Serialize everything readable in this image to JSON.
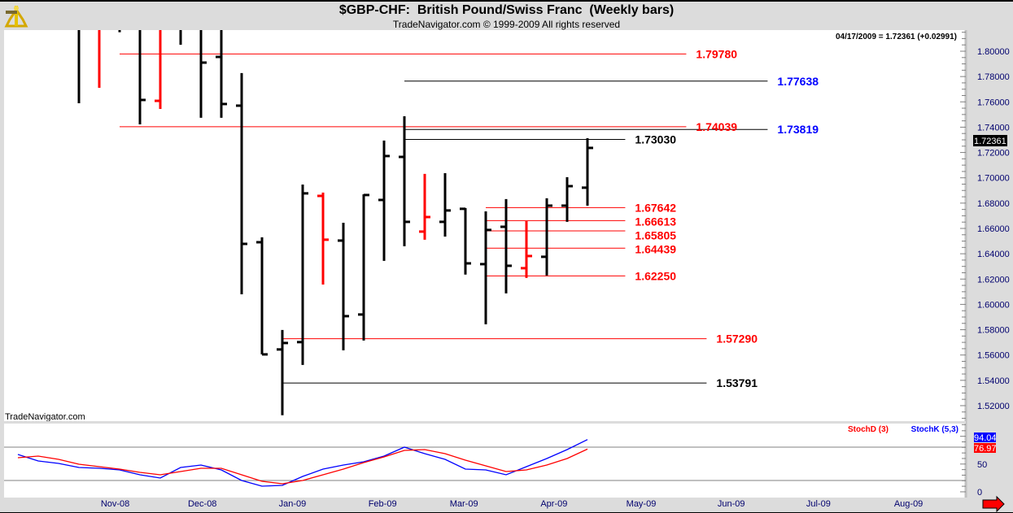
{
  "header": {
    "title": "$GBP-CHF:  British Pound/Swiss Franc  (Weekly bars)",
    "subtitle": "TradeNavigator.com © 1999-2009 All rights reserved",
    "readout": "04/17/2009 = 1.72361 (+0.02991)",
    "watermark": "TradeNavigator.com"
  },
  "colors": {
    "up_bar": "#000000",
    "highlight_bar": "#ff0000",
    "stoch_k": "#0000ff",
    "stoch_d": "#ff0000",
    "label_red": "#ff0000",
    "label_blue": "#0000ff",
    "label_black": "#000000"
  },
  "chart_data": [
    {
      "type": "ohlc",
      "title": "$GBP-CHF:  British Pound/Swiss Franc  (Weekly bars)",
      "ylim": [
        1.505,
        1.8167
      ],
      "y_ticks": [
        "1.80000",
        "1.78000",
        "1.76000",
        "1.74000",
        "1.72000",
        "1.70000",
        "1.68000",
        "1.66000",
        "1.64000",
        "1.62000",
        "1.60000",
        "1.58000",
        "1.56000",
        "1.54000",
        "1.52000"
      ],
      "last_price_label": "1.72361",
      "x_start": "2008-10-03",
      "x_ticks": [
        {
          "label": "Nov-08",
          "date": "2008-11-01"
        },
        {
          "label": "Dec-08",
          "date": "2008-12-01"
        },
        {
          "label": "Jan-09",
          "date": "2009-01-01"
        },
        {
          "label": "Feb-09",
          "date": "2009-02-01"
        },
        {
          "label": "Mar-09",
          "date": "2009-03-01"
        },
        {
          "label": "Apr-09",
          "date": "2009-04-01"
        },
        {
          "label": "May-09",
          "date": "2009-05-01"
        },
        {
          "label": "Jun-09",
          "date": "2009-06-01"
        },
        {
          "label": "Jul-09",
          "date": "2009-07-01"
        },
        {
          "label": "Aug-09",
          "date": "2009-08-01"
        }
      ],
      "bars": [
        {
          "date": "2008-10-24",
          "o": null,
          "h": null,
          "l": 1.7589,
          "c": null,
          "red": false
        },
        {
          "date": "2008-10-31",
          "o": null,
          "h": null,
          "l": 1.7711,
          "c": null,
          "red": true
        },
        {
          "date": "2008-11-07",
          "o": null,
          "h": null,
          "l": 1.815,
          "c": null,
          "red": false
        },
        {
          "date": "2008-11-14",
          "o": null,
          "h": null,
          "l": 1.7422,
          "c": 1.7615,
          "red": false
        },
        {
          "date": "2008-11-21",
          "o": 1.7608,
          "h": null,
          "l": 1.7544,
          "c": null,
          "red": true
        },
        {
          "date": "2008-11-28",
          "o": null,
          "h": null,
          "l": 1.8051,
          "c": null,
          "red": false
        },
        {
          "date": "2008-12-05",
          "o": null,
          "h": null,
          "l": 1.7474,
          "c": 1.791,
          "red": false
        },
        {
          "date": "2008-12-12",
          "o": 1.7955,
          "h": null,
          "l": 1.7474,
          "c": 1.7583,
          "red": false
        },
        {
          "date": "2008-12-19",
          "o": 1.757,
          "h": 1.7827,
          "l": 1.608,
          "c": 1.6478,
          "red": false
        },
        {
          "date": "2008-12-26",
          "o": 1.6491,
          "h": 1.653,
          "l": 1.5605,
          "c": 1.5605,
          "red": false
        },
        {
          "date": "2009-01-02",
          "o": 1.5644,
          "h": 1.5798,
          "l": 1.5124,
          "c": 1.5695,
          "red": false
        },
        {
          "date": "2009-01-09",
          "o": 1.5702,
          "h": 1.6947,
          "l": 1.5522,
          "c": 1.6877,
          "red": false
        },
        {
          "date": "2009-01-16",
          "o": 1.6857,
          "h": 1.6883,
          "l": 1.6157,
          "c": 1.6511,
          "red": true
        },
        {
          "date": "2009-01-23",
          "o": 1.6504,
          "h": 1.6645,
          "l": 1.5637,
          "c": 1.5907,
          "red": false
        },
        {
          "date": "2009-01-30",
          "o": 1.592,
          "h": 1.687,
          "l": 1.5714,
          "c": 1.6864,
          "red": false
        },
        {
          "date": "2009-02-06",
          "o": 1.6825,
          "h": 1.7294,
          "l": 1.6344,
          "c": 1.7172,
          "red": false
        },
        {
          "date": "2009-02-13",
          "o": 1.7165,
          "h": 1.7486,
          "l": 1.6459,
          "c": 1.6652,
          "red": false
        },
        {
          "date": "2009-02-20",
          "o": 1.6575,
          "h": 1.7031,
          "l": 1.6511,
          "c": 1.669,
          "red": true
        },
        {
          "date": "2009-02-27",
          "o": 1.6652,
          "h": 1.7037,
          "l": 1.6536,
          "c": 1.6742,
          "red": false
        },
        {
          "date": "2009-03-06",
          "o": 1.6755,
          "h": 1.6761,
          "l": 1.6235,
          "c": 1.6324,
          "red": false
        },
        {
          "date": "2009-03-13",
          "o": 1.6318,
          "h": 1.6735,
          "l": 1.5843,
          "c": 1.6588,
          "red": false
        },
        {
          "date": "2009-03-20",
          "o": 1.6613,
          "h": 1.6832,
          "l": 1.6087,
          "c": 1.6305,
          "red": false
        },
        {
          "date": "2009-03-27",
          "o": 1.6286,
          "h": 1.6658,
          "l": 1.6209,
          "c": 1.6382,
          "red": true
        },
        {
          "date": "2009-04-03",
          "o": 1.6376,
          "h": 1.6838,
          "l": 1.6228,
          "c": 1.678,
          "red": false
        },
        {
          "date": "2009-04-10",
          "o": 1.678,
          "h": 1.7005,
          "l": 1.6652,
          "c": 1.6934,
          "red": false
        },
        {
          "date": "2009-04-17",
          "o": 1.6922,
          "h": 1.7313,
          "l": 1.678,
          "c": 1.72361,
          "red": false
        }
      ],
      "levels": [
        {
          "label": "1.79780",
          "price": 1.7978,
          "from": "2008-11-07",
          "to": "2009-05-21",
          "line": "#ff0000",
          "text": "#ff0000"
        },
        {
          "label": "1.77638",
          "price": 1.77638,
          "from": "2009-02-13",
          "to": "2009-06-18",
          "line": "#000000",
          "text": "#0000ff"
        },
        {
          "label": "1.74039",
          "price": 1.74039,
          "from": "2008-11-07",
          "to": "2009-05-21",
          "line": "#ff0000",
          "text": "#ff0000"
        },
        {
          "label": "1.73819",
          "price": 1.73819,
          "from": "2009-02-13",
          "to": "2009-06-18",
          "line": "#000000",
          "text": "#0000ff"
        },
        {
          "label": "1.73030",
          "price": 1.7303,
          "from": "2009-02-13",
          "to": "2009-04-30",
          "line": "#000000",
          "text": "#000000"
        },
        {
          "label": "1.67642",
          "price": 1.67642,
          "from": "2009-03-13",
          "to": "2009-04-30",
          "line": "#ff0000",
          "text": "#ff0000"
        },
        {
          "label": "1.66613",
          "price": 1.66613,
          "from": "2009-03-13",
          "to": "2009-04-30",
          "line": "#ff0000",
          "text": "#ff0000"
        },
        {
          "label": "1.65805",
          "price": 1.65805,
          "from": "2009-03-13",
          "to": "2009-04-30",
          "line": "#ff0000",
          "text": "#ff0000"
        },
        {
          "label": "1.64439",
          "price": 1.64439,
          "from": "2009-03-13",
          "to": "2009-04-30",
          "line": "#ff0000",
          "text": "#ff0000"
        },
        {
          "label": "1.62250",
          "price": 1.6225,
          "from": "2009-03-13",
          "to": "2009-04-30",
          "line": "#ff0000",
          "text": "#ff0000"
        },
        {
          "label": "1.57290",
          "price": 1.5729,
          "from": "2009-01-02",
          "to": "2009-05-28",
          "line": "#ff0000",
          "text": "#ff0000"
        },
        {
          "label": "1.53791",
          "price": 1.53791,
          "from": "2009-01-02",
          "to": "2009-05-28",
          "line": "#000000",
          "text": "#000000"
        }
      ]
    },
    {
      "type": "line",
      "legend": [
        "StochD (3)",
        "StochK (5,3)"
      ],
      "ylim": [
        0,
        100
      ],
      "y_ticks": [
        "50",
        "0"
      ],
      "reference_lines": [
        80,
        20
      ],
      "last_k_label": "94.04",
      "last_d_label": "76.97",
      "x_start": "2008-10-03",
      "series": [
        {
          "name": "StochK (5,3)",
          "color": "#0000ff",
          "values": [
            67.3,
            55.6,
            51.2,
            43.8,
            42.4,
            39.4,
            30.7,
            24.8,
            43.8,
            48.2,
            39.4,
            20.4,
            10.1,
            11.6,
            27.7,
            40.9,
            48.2,
            54.1,
            64.3,
            80.4,
            68.7,
            58.5,
            40.9,
            39.4,
            30.7,
            45.3,
            60.0,
            76.0,
            94.04
          ]
        },
        {
          "name": "StochD (3)",
          "color": "#ff0000",
          "values": [
            61.4,
            64.3,
            58.5,
            49.7,
            45.3,
            40.9,
            35.1,
            30.7,
            36.5,
            42.4,
            42.4,
            30.7,
            19.0,
            14.6,
            20.4,
            30.7,
            40.9,
            52.6,
            62.9,
            74.6,
            76.0,
            68.7,
            57.0,
            46.8,
            36.5,
            39.4,
            48.2,
            60.0,
            76.97
          ]
        }
      ]
    }
  ]
}
